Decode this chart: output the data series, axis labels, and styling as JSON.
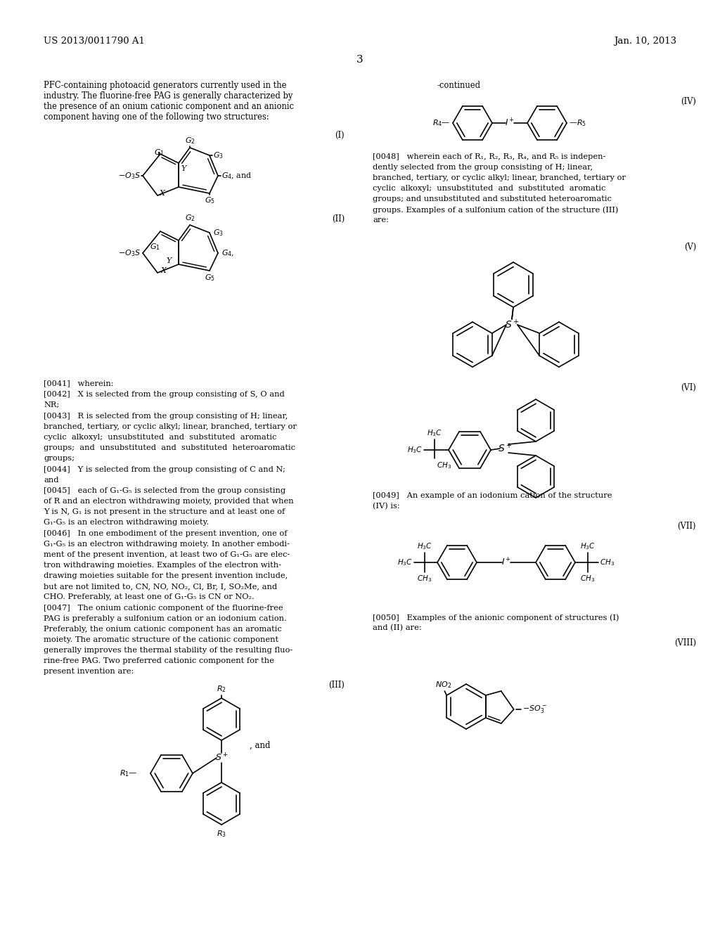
{
  "bg": "#ffffff",
  "header_left": "US 2013/0011790 A1",
  "header_right": "Jan. 10, 2013",
  "page_num": "3"
}
